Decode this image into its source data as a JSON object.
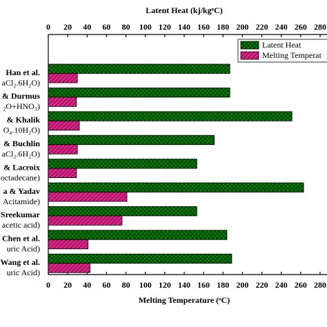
{
  "chart_data": {
    "type": "bar",
    "orientation": "horizontal",
    "x2label": "Latent Heat (kj/kgᵒC)",
    "xlabel": "Melting Temperature (ᵒC)",
    "categories": [
      [
        "Han et al.",
        "aCl₂.6H₂O)"
      ],
      [
        "& Durmus",
        "₂O+HNO₃)"
      ],
      [
        "& Khalik",
        "O₄.10H₂O)"
      ],
      [
        "& Buchlin",
        "aCl₂.6H₂O)"
      ],
      [
        "& Lacroix",
        "octadecane)"
      ],
      [
        "a & Yadav",
        "Acitamide)"
      ],
      [
        "Sreekumar",
        "acetic acid)"
      ],
      [
        "Chen et al.",
        "uric Acid)"
      ],
      [
        "Wang et al.",
        "uric Acid)"
      ]
    ],
    "series": [
      {
        "name": "Latent Heat",
        "color": "#008000",
        "axis": "x2",
        "values": [
          187,
          187,
          251,
          171,
          153,
          263,
          153,
          184,
          189
        ]
      },
      {
        "name": "Melting Temperat",
        "color": "#e0218a",
        "values": [
          30,
          29,
          32,
          30,
          29,
          81,
          76,
          41,
          43
        ]
      }
    ],
    "xlim": [
      0,
      280
    ],
    "xticks": [
      0,
      20,
      40,
      60,
      80,
      100,
      120,
      140,
      160,
      180,
      200,
      220,
      240,
      260,
      280
    ],
    "x2lim": [
      0,
      280
    ],
    "x2ticks": [
      0,
      20,
      40,
      60,
      80,
      100,
      120,
      140,
      160,
      180,
      200,
      220,
      240,
      260,
      280
    ],
    "legend": "upper right"
  }
}
